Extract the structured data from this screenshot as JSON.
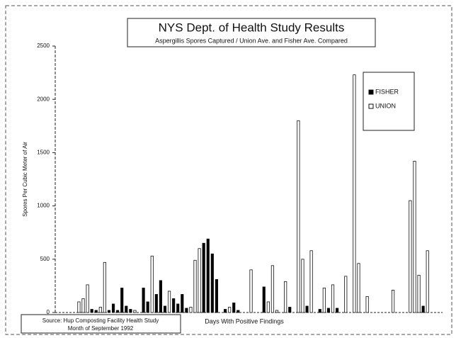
{
  "chart_data": {
    "type": "bar",
    "title": "NYS Dept. of Health Study Results",
    "subtitle": "Aspergillis Spores Captured / Union Ave. and Fisher Ave. Compared",
    "y_label": "Spores Per Cubic Meter of Air",
    "x_label": "Days With Positive Findings",
    "annotations": [
      "Source: Hup Composting Facility Health Study",
      "Month of September 1992"
    ],
    "categories": [
      null,
      null,
      null,
      null,
      null,
      null,
      null,
      null,
      null,
      null,
      null,
      null,
      null,
      null,
      null,
      null,
      null,
      null,
      null,
      null,
      null,
      null,
      null,
      null,
      null,
      null,
      null,
      null,
      null,
      null,
      null,
      null,
      null,
      null,
      null,
      null,
      null,
      null,
      null,
      null,
      null,
      null,
      null,
      null,
      null,
      null,
      null,
      null,
      null,
      null,
      null,
      null,
      null,
      null,
      null,
      null,
      null,
      null,
      null,
      null,
      null,
      null,
      null,
      null,
      null,
      null,
      null,
      null,
      null,
      null,
      null,
      null,
      null,
      null,
      null,
      null,
      null,
      null,
      null,
      null,
      null,
      null,
      null,
      null,
      null,
      null,
      null,
      null,
      null,
      null
    ],
    "series": [
      {
        "name": "FISHER",
        "color": "#000000",
        "values": [
          null,
          null,
          null,
          null,
          null,
          null,
          null,
          null,
          30,
          20,
          null,
          null,
          20,
          80,
          20,
          230,
          60,
          30,
          null,
          null,
          230,
          100,
          null,
          170,
          300,
          60,
          null,
          130,
          80,
          170,
          40,
          null,
          null,
          null,
          650,
          690,
          550,
          310,
          null,
          30,
          null,
          90,
          20,
          null,
          null,
          null,
          null,
          null,
          240,
          null,
          null,
          null,
          null,
          null,
          50,
          null,
          null,
          null,
          60,
          null,
          null,
          30,
          null,
          40,
          null,
          40,
          null,
          null,
          null,
          null,
          null,
          null,
          null,
          null,
          null,
          null,
          null,
          null,
          null,
          null,
          null,
          null,
          null,
          null,
          null,
          60,
          null,
          null,
          null,
          null
        ]
      },
      {
        "name": "UNION",
        "color": "#ffffff",
        "values": [
          null,
          null,
          null,
          null,
          null,
          100,
          130,
          260,
          null,
          null,
          50,
          470,
          null,
          null,
          null,
          null,
          null,
          null,
          20,
          null,
          null,
          null,
          530,
          null,
          null,
          null,
          200,
          null,
          null,
          null,
          null,
          50,
          490,
          600,
          null,
          null,
          null,
          null,
          null,
          null,
          50,
          null,
          null,
          null,
          null,
          400,
          null,
          null,
          null,
          100,
          440,
          20,
          null,
          290,
          null,
          null,
          1800,
          500,
          null,
          580,
          null,
          null,
          230,
          null,
          260,
          null,
          null,
          340,
          null,
          2230,
          460,
          null,
          150,
          null,
          null,
          null,
          null,
          null,
          210,
          null,
          null,
          null,
          1050,
          1420,
          350,
          null,
          580,
          null,
          null,
          null
        ]
      }
    ],
    "ylim": [
      0,
      2500
    ],
    "yticks": [
      0,
      500,
      1000,
      1500,
      2000,
      2500
    ],
    "legend": "top-right"
  }
}
